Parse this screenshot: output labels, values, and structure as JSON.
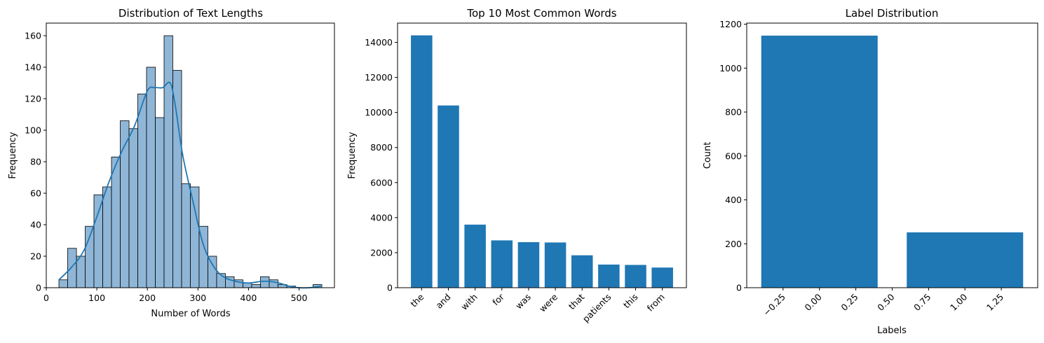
{
  "colors": {
    "bar": "#1f77b4",
    "hist_fill": "#8fb6d6",
    "hist_edge": "#000000",
    "kde_line": "#1f77b4",
    "axes": "#000000",
    "background": "#ffffff"
  },
  "chart_data": [
    {
      "type": "histogram",
      "title": "Distribution of Text Lengths",
      "xlabel": "Number of Words",
      "ylabel": "Frequency",
      "xlim": [
        0,
        570
      ],
      "ylim": [
        0,
        168
      ],
      "xticks": [
        "0",
        "100",
        "200",
        "300",
        "400",
        "500"
      ],
      "yticks": [
        "0",
        "20",
        "40",
        "60",
        "80",
        "100",
        "120",
        "140",
        "160"
      ],
      "bin_edges": [
        25,
        42.3,
        59.7,
        77,
        94.3,
        111.7,
        129,
        146.3,
        163.7,
        181,
        198.3,
        215.7,
        233,
        250.3,
        267.7,
        285,
        302.3,
        319.7,
        337,
        354.3,
        371.7,
        389,
        406.3,
        423.7,
        441,
        458.3,
        475.7,
        493,
        510.3,
        527.7,
        545
      ],
      "values": [
        5,
        25,
        20,
        39,
        59,
        64,
        83,
        106,
        101,
        123,
        140,
        108,
        160,
        138,
        66,
        64,
        39,
        20,
        9,
        7,
        5,
        3,
        2,
        7,
        5,
        2,
        1,
        0,
        0,
        2
      ],
      "kde": {
        "x": [
          25,
          50,
          75,
          100,
          125,
          150,
          175,
          200,
          215,
          230,
          245,
          255,
          270,
          290,
          310,
          330,
          350,
          375,
          400,
          425,
          440,
          460,
          480,
          500,
          520,
          545
        ],
        "y": [
          5,
          13,
          24,
          45,
          68,
          87,
          103,
          125,
          127,
          127,
          130,
          116,
          84,
          55,
          28,
          14,
          7,
          4,
          3,
          4,
          4,
          3,
          1,
          0,
          0,
          1
        ]
      }
    },
    {
      "type": "bar",
      "title": "Top 10 Most Common Words",
      "xlabel": "",
      "ylabel": "Frequency",
      "ylim": [
        0,
        15100
      ],
      "yticks": [
        "0",
        "2000",
        "4000",
        "6000",
        "8000",
        "10000",
        "12000",
        "14000"
      ],
      "categories": [
        "the",
        "and",
        "with",
        "for",
        "was",
        "were",
        "that",
        "patients",
        "this",
        "from"
      ],
      "values": [
        14400,
        10400,
        3600,
        2700,
        2600,
        2580,
        1850,
        1320,
        1300,
        1150
      ]
    },
    {
      "type": "bar",
      "title": "Label Distribution",
      "xlabel": "Labels",
      "ylabel": "Count",
      "xlim": [
        -0.5,
        1.5
      ],
      "ylim": [
        0,
        1205
      ],
      "xticks": [
        "−0.25",
        "0.00",
        "0.25",
        "0.50",
        "0.75",
        "1.00",
        "1.25"
      ],
      "yticks": [
        "0",
        "200",
        "400",
        "600",
        "800",
        "1000",
        "1200"
      ],
      "bars": [
        {
          "label": 0,
          "value": 1148
        },
        {
          "label": 1,
          "value": 252
        }
      ]
    }
  ]
}
